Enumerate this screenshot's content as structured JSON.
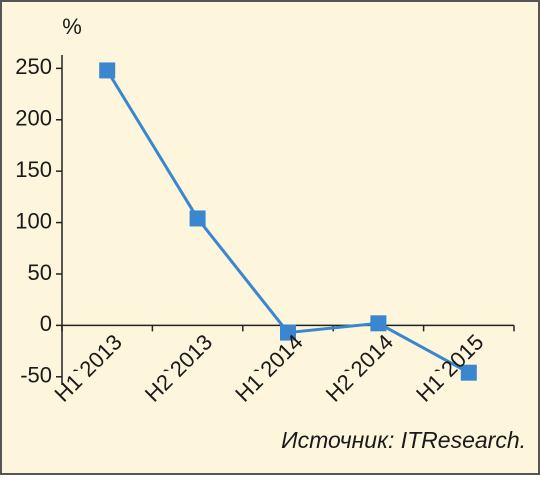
{
  "chart_data": {
    "type": "line",
    "y_axis_label": "%",
    "categories": [
      "H1`2013",
      "H2`2013",
      "H1`2014",
      "H2`2014",
      "H1`2015"
    ],
    "values": [
      248,
      104,
      -7,
      2,
      -46
    ],
    "color": "#3a86cf",
    "ylim": [
      -58,
      263
    ],
    "yticks": [
      -50,
      0,
      50,
      100,
      150,
      200,
      250
    ],
    "source": "Источник: ITResearch."
  }
}
